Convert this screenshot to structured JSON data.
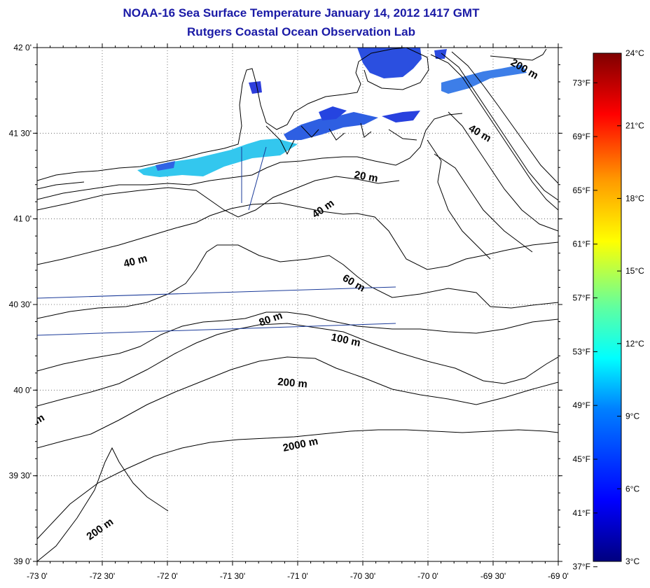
{
  "title": "NOAA-16 Sea Surface Temperature January 14, 2012 1417 GMT",
  "subtitle": "Rutgers Coastal Ocean Observation Lab",
  "map": {
    "lon_labels": [
      "-73 0'",
      "-72 30'",
      "-72 0'",
      "-71 30'",
      "-71 0'",
      "-70 30'",
      "-70 0'",
      "-69 30'",
      "-69 0'"
    ],
    "lat_labels": [
      "42 0'",
      "41 30'",
      "41 0'",
      "40 30'",
      "40 0'",
      "39 30'",
      "39 0'"
    ],
    "lon_range": [
      -73,
      -69
    ],
    "lat_range": [
      39,
      42
    ],
    "grid": "dotted",
    "contour_labels": [
      "200 m",
      "40 m",
      "20 m",
      "40 m",
      "40 m",
      "60 m",
      "80 m",
      "100 m",
      "200 m",
      "2000 m",
      "200 m",
      "m"
    ]
  },
  "colorbar": {
    "celsius_labels": [
      "24°C",
      "21°C",
      "18°C",
      "15°C",
      "12°C",
      "9°C",
      "6°C",
      "3°C"
    ],
    "fahrenheit_labels": [
      "73°F",
      "69°F",
      "65°F",
      "61°F",
      "57°F",
      "53°F",
      "49°F",
      "45°F",
      "41°F",
      "37°F"
    ],
    "range_c": [
      3,
      24
    ],
    "colors": [
      "#00007f",
      "#0000ff",
      "#0080ff",
      "#00ffff",
      "#80ff80",
      "#ffff00",
      "#ff8000",
      "#ff0000",
      "#7f0000"
    ]
  },
  "colors": {
    "title": "#1a1aa6",
    "coast": "#000000",
    "track_line": "#1a3a99"
  }
}
